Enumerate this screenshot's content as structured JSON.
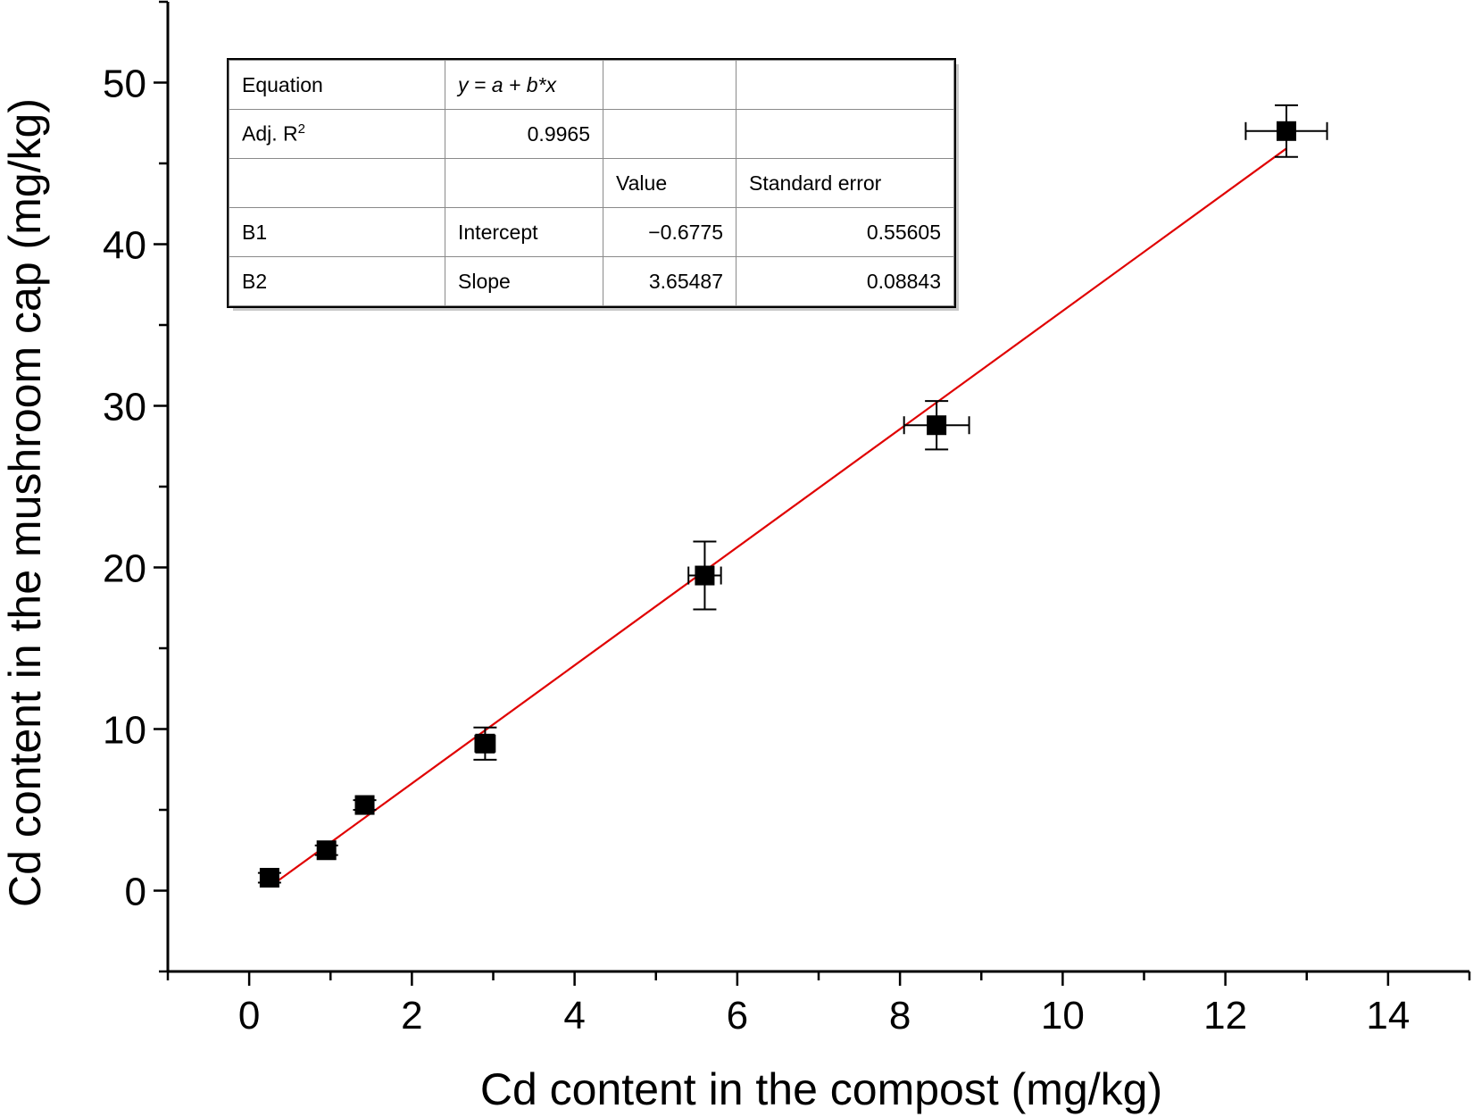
{
  "chart_data": {
    "type": "scatter",
    "xlabel": "Cd content  in the compost (mg/kg)",
    "ylabel": "Cd content in the mushroom cap (mg/kg)",
    "xlim": [
      -1,
      15
    ],
    "ylim": [
      -5,
      55
    ],
    "x_ticks": [
      "0",
      "2",
      "4",
      "6",
      "8",
      "10",
      "12",
      "14"
    ],
    "y_ticks": [
      "0",
      "10",
      "20",
      "30",
      "40",
      "50"
    ],
    "grid": false,
    "points": [
      {
        "x": 0.25,
        "y": 0.8,
        "x_err": 0.05,
        "y_err": 0.3
      },
      {
        "x": 0.95,
        "y": 2.5,
        "x_err": 0.05,
        "y_err": 0.3
      },
      {
        "x": 1.42,
        "y": 5.3,
        "x_err": 0.05,
        "y_err": 0.3
      },
      {
        "x": 2.9,
        "y": 9.1,
        "x_err": 0.12,
        "y_err": 1.0
      },
      {
        "x": 5.6,
        "y": 19.5,
        "x_err": 0.2,
        "y_err": 2.1
      },
      {
        "x": 8.45,
        "y": 28.8,
        "x_err": 0.4,
        "y_err": 1.5
      },
      {
        "x": 12.75,
        "y": 47.0,
        "x_err": 0.5,
        "y_err": 1.6
      }
    ],
    "fit_line": {
      "intercept": -0.6775,
      "slope": 3.65487,
      "x_range": [
        0.25,
        12.75
      ],
      "color": "#e00000"
    },
    "marker_color": "#000000"
  },
  "fit_table": {
    "equation_label": "Equation",
    "equation_value": "y = a + b*x",
    "adjr2_label": "Adj. R",
    "adjr2_sup": "2",
    "adjr2_value": "0.9965",
    "header_value": "Value",
    "header_se": "Standard error",
    "rows": [
      {
        "param": "B1",
        "name": "Intercept",
        "value": "−0.6775",
        "se": "0.55605"
      },
      {
        "param": "B2",
        "name": "Slope",
        "value": "3.65487",
        "se": "0.08843"
      }
    ]
  }
}
